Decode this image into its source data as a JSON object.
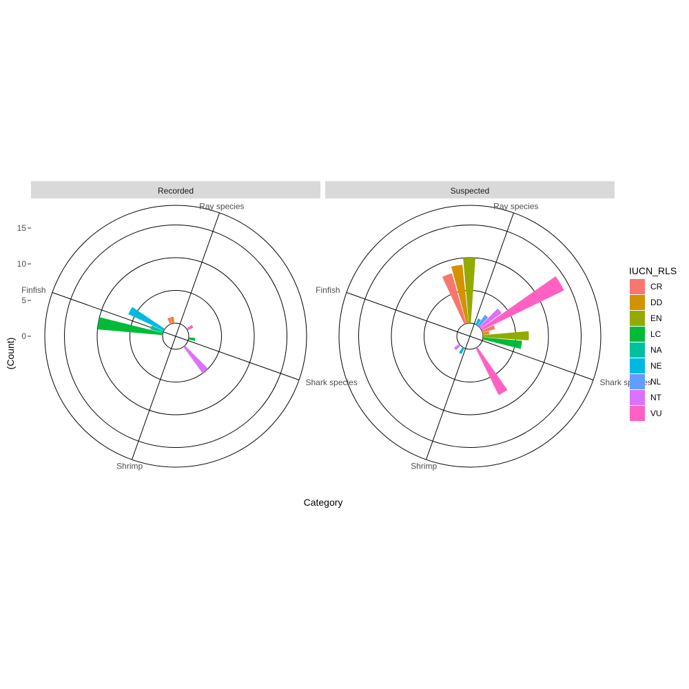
{
  "chart_data": {
    "type": "polar-bar",
    "xlabel": "Category",
    "ylabel": "(Count)",
    "y_ticks": [
      0,
      5,
      10,
      15
    ],
    "ylim": [
      -2,
      18
    ],
    "categories": [
      "Finfish",
      "Ray species",
      "Shark species",
      "Shrimp"
    ],
    "legend": {
      "title": "IUCN_RLS",
      "placement": "right",
      "entries": [
        {
          "code": "CR",
          "color": "#F8766D"
        },
        {
          "code": "DD",
          "color": "#D39200"
        },
        {
          "code": "EN",
          "color": "#93AA00"
        },
        {
          "code": "LC",
          "color": "#00BA38"
        },
        {
          "code": "NA",
          "color": "#00C19F"
        },
        {
          "code": "NE",
          "color": "#00B9E3"
        },
        {
          "code": "NL",
          "color": "#619CFF"
        },
        {
          "code": "NT",
          "color": "#DB72FB"
        },
        {
          "code": "VU",
          "color": "#FF61C3"
        }
      ]
    },
    "panels": [
      {
        "title": "Recorded",
        "bars": [
          {
            "category": "Finfish",
            "status": "CR",
            "value": 0
          },
          {
            "category": "Finfish",
            "status": "DD",
            "value": 0
          },
          {
            "category": "Finfish",
            "status": "EN",
            "value": 0
          },
          {
            "category": "Finfish",
            "status": "LC",
            "value": 10
          },
          {
            "category": "Finfish",
            "status": "NA",
            "value": 2
          },
          {
            "category": "Finfish",
            "status": "NE",
            "value": 6
          },
          {
            "category": "Finfish",
            "status": "NL",
            "value": 0
          },
          {
            "category": "Finfish",
            "status": "NT",
            "value": 0
          },
          {
            "category": "Finfish",
            "status": "VU",
            "value": 0
          },
          {
            "category": "Ray species",
            "status": "CR",
            "value": 1
          },
          {
            "category": "Ray species",
            "status": "DD",
            "value": 1
          },
          {
            "category": "Ray species",
            "status": "EN",
            "value": 0
          },
          {
            "category": "Ray species",
            "status": "LC",
            "value": 0
          },
          {
            "category": "Ray species",
            "status": "NA",
            "value": 0
          },
          {
            "category": "Ray species",
            "status": "NE",
            "value": 0
          },
          {
            "category": "Ray species",
            "status": "NL",
            "value": 0
          },
          {
            "category": "Ray species",
            "status": "NT",
            "value": 0
          },
          {
            "category": "Ray species",
            "status": "VU",
            "value": 1
          },
          {
            "category": "Shark species",
            "status": "CR",
            "value": 0
          },
          {
            "category": "Shark species",
            "status": "DD",
            "value": 0
          },
          {
            "category": "Shark species",
            "status": "EN",
            "value": 0
          },
          {
            "category": "Shark species",
            "status": "LC",
            "value": 1
          },
          {
            "category": "Shark species",
            "status": "NA",
            "value": 0
          },
          {
            "category": "Shark species",
            "status": "NE",
            "value": 0
          },
          {
            "category": "Shark species",
            "status": "NL",
            "value": 0
          },
          {
            "category": "Shark species",
            "status": "NT",
            "value": 5
          },
          {
            "category": "Shark species",
            "status": "VU",
            "value": 0
          },
          {
            "category": "Shrimp",
            "status": "CR",
            "value": 0
          },
          {
            "category": "Shrimp",
            "status": "DD",
            "value": 0
          },
          {
            "category": "Shrimp",
            "status": "EN",
            "value": 0
          },
          {
            "category": "Shrimp",
            "status": "LC",
            "value": 0
          },
          {
            "category": "Shrimp",
            "status": "NA",
            "value": 0
          },
          {
            "category": "Shrimp",
            "status": "NE",
            "value": 0
          },
          {
            "category": "Shrimp",
            "status": "NL",
            "value": 0
          },
          {
            "category": "Shrimp",
            "status": "NT",
            "value": 0
          },
          {
            "category": "Shrimp",
            "status": "VU",
            "value": 0
          }
        ]
      },
      {
        "title": "Suspected",
        "bars": [
          {
            "category": "Finfish",
            "status": "CR",
            "value": 0
          },
          {
            "category": "Finfish",
            "status": "DD",
            "value": 0
          },
          {
            "category": "Finfish",
            "status": "EN",
            "value": 0
          },
          {
            "category": "Finfish",
            "status": "LC",
            "value": 0
          },
          {
            "category": "Finfish",
            "status": "NA",
            "value": 0
          },
          {
            "category": "Finfish",
            "status": "NE",
            "value": 0
          },
          {
            "category": "Finfish",
            "status": "NL",
            "value": 0
          },
          {
            "category": "Finfish",
            "status": "NT",
            "value": 0
          },
          {
            "category": "Finfish",
            "status": "VU",
            "value": 0
          },
          {
            "category": "Ray species",
            "status": "CR",
            "value": 8
          },
          {
            "category": "Ray species",
            "status": "DD",
            "value": 9
          },
          {
            "category": "Ray species",
            "status": "EN",
            "value": 10
          },
          {
            "category": "Ray species",
            "status": "LC",
            "value": 0
          },
          {
            "category": "Ray species",
            "status": "NA",
            "value": 0
          },
          {
            "category": "Ray species",
            "status": "NE",
            "value": 1
          },
          {
            "category": "Ray species",
            "status": "NL",
            "value": 2
          },
          {
            "category": "Ray species",
            "status": "NT",
            "value": 4
          },
          {
            "category": "Ray species",
            "status": "VU",
            "value": 14
          },
          {
            "category": "Shark species",
            "status": "CR",
            "value": 2
          },
          {
            "category": "Shark species",
            "status": "DD",
            "value": 1
          },
          {
            "category": "Shark species",
            "status": "EN",
            "value": 7
          },
          {
            "category": "Shark species",
            "status": "LC",
            "value": 6
          },
          {
            "category": "Shark species",
            "status": "NA",
            "value": 0
          },
          {
            "category": "Shark species",
            "status": "NE",
            "value": 0
          },
          {
            "category": "Shark species",
            "status": "NL",
            "value": 0
          },
          {
            "category": "Shark species",
            "status": "NT",
            "value": 0
          },
          {
            "category": "Shark species",
            "status": "VU",
            "value": 8
          },
          {
            "category": "Shrimp",
            "status": "CR",
            "value": 0
          },
          {
            "category": "Shrimp",
            "status": "DD",
            "value": 0
          },
          {
            "category": "Shrimp",
            "status": "EN",
            "value": 0
          },
          {
            "category": "Shrimp",
            "status": "LC",
            "value": 0
          },
          {
            "category": "Shrimp",
            "status": "NA",
            "value": 0
          },
          {
            "category": "Shrimp",
            "status": "NE",
            "value": 1
          },
          {
            "category": "Shrimp",
            "status": "NL",
            "value": 0
          },
          {
            "category": "Shrimp",
            "status": "NT",
            "value": 1
          },
          {
            "category": "Shrimp",
            "status": "VU",
            "value": 0
          }
        ]
      }
    ]
  }
}
